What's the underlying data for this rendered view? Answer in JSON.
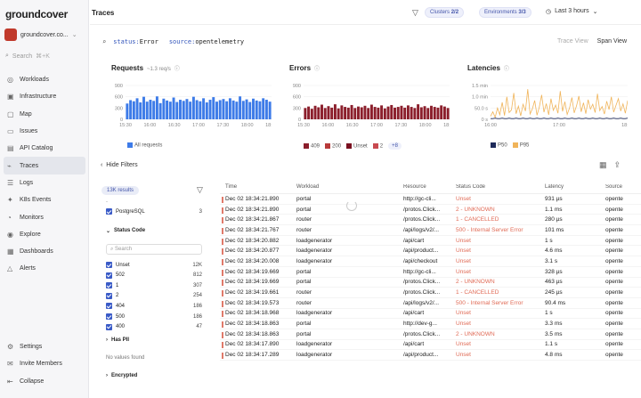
{
  "sidebar": {
    "logo": "groundcover",
    "workspace": "groundcover.co...",
    "search_placeholder": "Search",
    "search_shortcut": "⌘+K",
    "items": [
      {
        "label": "Workloads",
        "icon": "workloads-icon",
        "active": false
      },
      {
        "label": "Infrastructure",
        "icon": "infrastructure-icon",
        "active": false
      },
      {
        "label": "Map",
        "icon": "map-icon",
        "active": false
      },
      {
        "label": "Issues",
        "icon": "issues-icon",
        "active": false
      },
      {
        "label": "API Catalog",
        "icon": "api-catalog-icon",
        "active": false
      },
      {
        "label": "Traces",
        "icon": "traces-icon",
        "active": true
      },
      {
        "label": "Logs",
        "icon": "logs-icon",
        "active": false
      },
      {
        "label": "K8s Events",
        "icon": "k8s-events-icon",
        "active": false
      },
      {
        "label": "Monitors",
        "icon": "monitors-icon",
        "active": false
      },
      {
        "label": "Explore",
        "icon": "explore-icon",
        "active": false
      },
      {
        "label": "Dashboards",
        "icon": "dashboards-icon",
        "active": false
      },
      {
        "label": "Alerts",
        "icon": "alerts-icon",
        "active": false
      }
    ],
    "bottom": [
      {
        "label": "Settings",
        "icon": "gear-icon"
      },
      {
        "label": "Invite Members",
        "icon": "invite-icon"
      },
      {
        "label": "Collapse",
        "icon": "collapse-icon"
      }
    ]
  },
  "header": {
    "title": "Traces",
    "clusters_label": "Clusters",
    "clusters_count": "2/2",
    "env_label": "Environments",
    "env_count": "3/3",
    "time_range": "Last 3 hours"
  },
  "query": {
    "k1": "status:",
    "v1": "Error",
    "k2": "source:",
    "v2": "opentelemetry",
    "trace_view": "Trace View",
    "span_view": "Span View"
  },
  "charts": {
    "requests": {
      "title": "Requests",
      "sub": "~1.3 req/s",
      "yticks": [
        "900",
        "600",
        "300",
        "0"
      ],
      "xticks": [
        "15:30",
        "16:00",
        "16:30",
        "17:00",
        "17:30",
        "18:00",
        "18:30"
      ],
      "legend": "All requests"
    },
    "errors": {
      "title": "Errors",
      "yticks": [
        "900",
        "600",
        "300",
        "0"
      ],
      "xticks": [
        "15:30",
        "16:00",
        "16:30",
        "17:00",
        "17:30",
        "18:00",
        "18:30"
      ],
      "legend": [
        "409",
        "200",
        "Unset",
        "2"
      ],
      "more": "+8"
    },
    "latencies": {
      "title": "Latencies",
      "yticks": [
        "1.5 min",
        "1.0 min",
        "50.0 s",
        "0 s"
      ],
      "xticks": [
        "16:00",
        "17:00",
        "18:00"
      ],
      "legend": [
        "P50",
        "P95"
      ]
    }
  },
  "chart_data": [
    {
      "type": "bar",
      "title": "Requests",
      "series": [
        {
          "name": "All requests",
          "values": [
            420,
            510,
            480,
            560,
            450,
            600,
            470,
            520,
            490,
            610,
            430,
            550,
            500,
            470,
            580,
            460,
            520,
            490,
            540,
            470,
            600,
            510,
            480,
            560,
            450,
            520,
            590,
            470,
            510,
            540,
            480,
            560,
            500,
            470,
            610,
            490,
            530,
            460,
            550,
            500,
            480,
            560,
            520,
            470
          ]
        }
      ],
      "ylim": [
        0,
        900
      ],
      "color": "#3d7be8"
    },
    {
      "type": "bar",
      "title": "Errors",
      "series": [
        {
          "name": "409",
          "values": [
            300,
            340,
            280,
            360,
            320,
            390,
            300,
            350,
            310,
            400,
            290,
            370,
            330,
            310,
            380,
            300,
            340,
            320,
            360,
            300,
            390,
            330,
            310,
            370,
            290,
            340,
            380,
            310,
            330,
            360,
            310,
            370,
            330,
            300,
            400,
            320,
            350,
            300,
            360,
            330,
            310,
            370,
            340,
            300
          ]
        }
      ],
      "ylim": [
        0,
        900
      ],
      "color": "#8b1e2b"
    },
    {
      "type": "line",
      "title": "Latencies",
      "series": [
        {
          "name": "P95",
          "values": [
            8,
            20,
            5,
            30,
            12,
            45,
            10,
            60,
            18,
            25,
            70,
            15,
            35,
            9,
            40,
            22,
            80,
            14,
            28,
            50,
            11,
            33,
            65,
            19,
            42,
            12,
            55,
            24,
            38,
            16,
            75,
            21,
            47,
            13,
            30,
            58,
            17,
            36,
            62,
            20,
            44,
            15,
            52,
            27,
            40,
            18,
            68,
            23,
            34,
            14,
            48,
            26,
            60,
            19,
            37,
            55,
            22,
            41,
            16,
            50
          ]
        },
        {
          "name": "P50",
          "values": [
            2,
            2,
            3,
            2,
            2,
            3,
            2,
            2,
            3,
            2,
            2,
            3,
            2,
            2,
            3,
            2,
            2,
            3,
            2,
            2,
            3,
            2,
            2,
            3,
            2,
            2,
            3,
            2,
            2,
            3,
            2,
            2,
            3,
            2,
            2,
            3,
            2,
            2,
            3,
            2,
            2,
            3,
            2,
            2,
            3,
            2,
            2,
            3,
            2,
            2,
            3,
            2,
            2,
            3,
            2,
            2,
            3,
            2,
            2,
            3
          ]
        }
      ],
      "ylim": [
        0,
        90
      ],
      "colors": {
        "P95": "#f0b45a",
        "P50": "#1e2a5a"
      }
    }
  ],
  "filters": {
    "hide_label": "Hide Filters",
    "results": "13K results",
    "db_item": {
      "label": "PostgreSQL",
      "count": "3"
    },
    "status_title": "Status Code",
    "search_placeholder": "Search",
    "status_items": [
      {
        "label": "Unset",
        "count": "12K"
      },
      {
        "label": "502",
        "count": "812"
      },
      {
        "label": "1",
        "count": "307"
      },
      {
        "label": "2",
        "count": "254"
      },
      {
        "label": "404",
        "count": "186"
      },
      {
        "label": "500",
        "count": "186"
      },
      {
        "label": "400",
        "count": "47"
      }
    ],
    "haspii_title": "Has PII",
    "no_values": "No values found",
    "encrypted_title": "Encrypted"
  },
  "table": {
    "headers": [
      "Time",
      "Workload",
      "Resource",
      "Status Code",
      "Latency",
      "Source"
    ],
    "rows": [
      [
        "Dec 02 18:34:21.890",
        "portal",
        "http://gc-cli...",
        "Unset",
        "931 µs",
        "opente"
      ],
      [
        "Dec 02 18:34:21.890",
        "portal",
        "/protos.Click...",
        "2 - UNKNOWN",
        "1.1 ms",
        "opente"
      ],
      [
        "Dec 02 18:34:21.867",
        "router",
        "/protos.Click...",
        "1 - CANCELLED",
        "280 µs",
        "opente"
      ],
      [
        "Dec 02 18:34:21.767",
        "router",
        "/api/logs/v2/...",
        "500 - Internal Server Error",
        "101 ms",
        "opente"
      ],
      [
        "Dec 02 18:34:20.882",
        "loadgenerator",
        "/api/cart",
        "Unset",
        "1 s",
        "opente"
      ],
      [
        "Dec 02 18:34:20.877",
        "loadgenerator",
        "/api/product...",
        "Unset",
        "4.6 ms",
        "opente"
      ],
      [
        "Dec 02 18:34:20.008",
        "loadgenerator",
        "/api/checkout",
        "Unset",
        "3.1 s",
        "opente"
      ],
      [
        "Dec 02 18:34:19.669",
        "portal",
        "http://gc-cli...",
        "Unset",
        "328 µs",
        "opente"
      ],
      [
        "Dec 02 18:34:19.669",
        "portal",
        "/protos.Click...",
        "2 - UNKNOWN",
        "463 µs",
        "opente"
      ],
      [
        "Dec 02 18:34:19.661",
        "router",
        "/protos.Click...",
        "1 - CANCELLED",
        "245 µs",
        "opente"
      ],
      [
        "Dec 02 18:34:19.573",
        "router",
        "/api/logs/v2/...",
        "500 - Internal Server Error",
        "90.4 ms",
        "opente"
      ],
      [
        "Dec 02 18:34:18.968",
        "loadgenerator",
        "/api/cart",
        "Unset",
        "1 s",
        "opente"
      ],
      [
        "Dec 02 18:34:18.863",
        "portal",
        "http://dev-g...",
        "Unset",
        "3.3 ms",
        "opente"
      ],
      [
        "Dec 02 18:34:18.863",
        "portal",
        "/protos.Click...",
        "2 - UNKNOWN",
        "3.5 ms",
        "opente"
      ],
      [
        "Dec 02 18:34:17.890",
        "loadgenerator",
        "/api/cart",
        "Unset",
        "1.1 s",
        "opente"
      ],
      [
        "Dec 02 18:34:17.289",
        "loadgenerator",
        "/api/product...",
        "Unset",
        "4.8 ms",
        "opente"
      ]
    ]
  }
}
